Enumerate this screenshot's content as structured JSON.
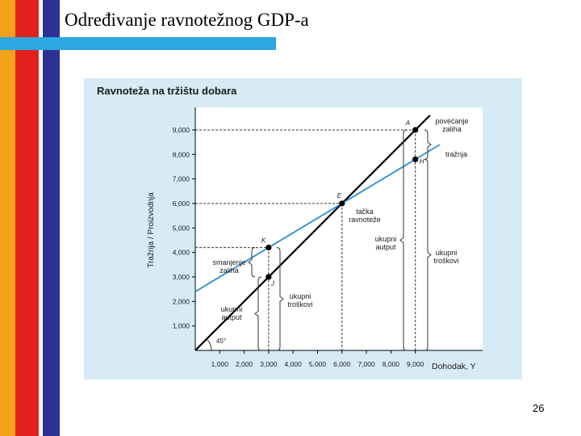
{
  "slide": {
    "title": "Određivanje ravnotežnog GDP-a",
    "page_number": "26"
  },
  "colors": {
    "stripe_orange": "#F7A11A",
    "stripe_red": "#E2211C",
    "stripe_navy": "#2E3192",
    "title_bar": "#2DA7E0",
    "panel": "#D7EBF6",
    "plot_bg": "#FFFFFF",
    "demand_line": "#2A8DD4",
    "supply_line": "#000000"
  },
  "chart_data": {
    "type": "line",
    "title": "Ravnoteža na tržištu dobara",
    "xlabel": "Dohodak, Y",
    "ylabel": "Tražnja / Proizvodnja",
    "xlim": [
      0,
      10000
    ],
    "ylim": [
      0,
      10000
    ],
    "x_ticks": [
      "1,000",
      "2,000",
      "3,000",
      "4,000",
      "5,000",
      "6,000",
      "7,000",
      "8,000",
      "9,000"
    ],
    "y_ticks": [
      "1,000",
      "2,000",
      "3,000",
      "4,000",
      "5,000",
      "6,000",
      "7,000",
      "8,000",
      "9,000"
    ],
    "series": [
      {
        "x": [
          0,
          9600
        ],
        "y": [
          0,
          9600
        ]
      },
      {
        "x": [
          0,
          10000
        ],
        "y": [
          2400,
          8400
        ]
      }
    ],
    "points": [
      {
        "label": "A",
        "x": 9000,
        "y": 9000
      },
      {
        "label": "H",
        "x": 9000,
        "y": 7800
      },
      {
        "label": "E",
        "x": 6000,
        "y": 6000
      },
      {
        "label": "K",
        "x": 3000,
        "y": 4200
      },
      {
        "label": "J",
        "x": 3000,
        "y": 3000
      }
    ],
    "annotations": {
      "angle": "45°",
      "povecanje_zaliha": [
        "povećanje",
        "zaliha"
      ],
      "traznja": "tražnja",
      "tacka_ravnoteze": [
        "tačka",
        "ravnoteže"
      ],
      "ukupni_autput_right": [
        "ukupni",
        "autput"
      ],
      "ukupni_troskovi_right": [
        "ukupni",
        "troškovi"
      ],
      "smanjenje_zaliha": [
        "smanjenje",
        "zaliha"
      ],
      "ukupni_troskovi_left": [
        "ukupni",
        "troškovi"
      ],
      "ukupni_autput_left": [
        "ukupni",
        "autput"
      ]
    }
  }
}
